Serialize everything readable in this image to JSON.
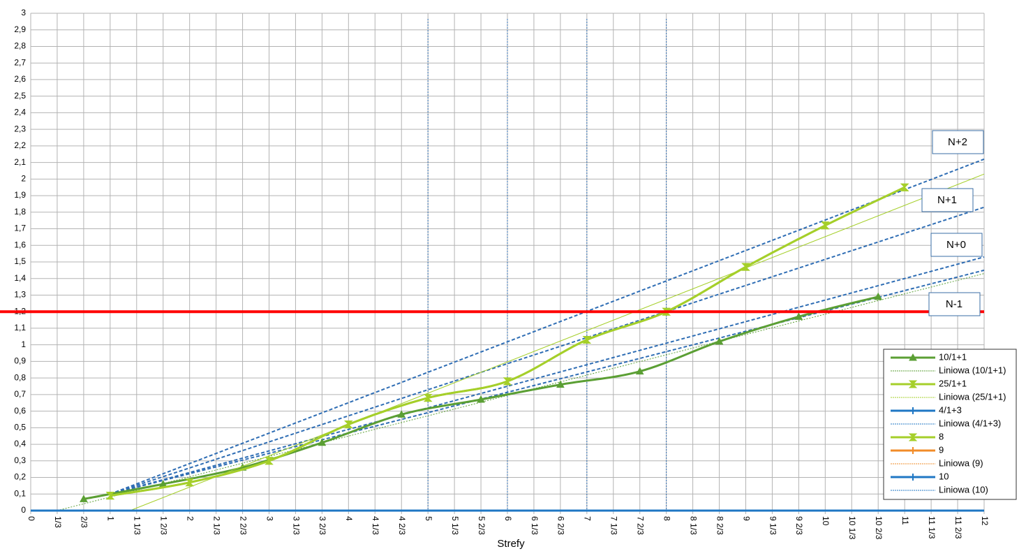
{
  "chart_data": {
    "type": "line",
    "x_label": "Strefy",
    "xlim": [
      0,
      12
    ],
    "ylim": [
      0,
      3
    ],
    "grid": true,
    "xticks": [
      0,
      {
        "value": 0.3333,
        "label": "1/3"
      },
      {
        "value": 0.6667,
        "label": "2/3"
      },
      1,
      {
        "value": 1.3333,
        "label": "1 1/3"
      },
      {
        "value": 1.6667,
        "label": "1 2/3"
      },
      2,
      {
        "value": 2.3333,
        "label": "2 1/3"
      },
      {
        "value": 2.6667,
        "label": "2 2/3"
      },
      3,
      {
        "value": 3.3333,
        "label": "3 1/3"
      },
      {
        "value": 3.6667,
        "label": "3 2/3"
      },
      4,
      {
        "value": 4.3333,
        "label": "4 1/3"
      },
      {
        "value": 4.6667,
        "label": "4 2/3"
      },
      5,
      {
        "value": 5.3333,
        "label": "5 1/3"
      },
      {
        "value": 5.6667,
        "label": "5 2/3"
      },
      6,
      {
        "value": 6.3333,
        "label": "6 1/3"
      },
      {
        "value": 6.6667,
        "label": "6 2/3"
      },
      7,
      {
        "value": 7.3333,
        "label": "7 1/3"
      },
      {
        "value": 7.6667,
        "label": "7 2/3"
      },
      8,
      {
        "value": 8.3333,
        "label": "8 1/3"
      },
      {
        "value": 8.6667,
        "label": "8 2/3"
      },
      9,
      {
        "value": 9.3333,
        "label": "9 1/3"
      },
      {
        "value": 9.6667,
        "label": "9 2/3"
      },
      10,
      {
        "value": 10.3333,
        "label": "10 1/3"
      },
      {
        "value": 10.6667,
        "label": "10 2/3"
      },
      11,
      {
        "value": 11.3333,
        "label": "11 1/3"
      },
      {
        "value": 11.6667,
        "label": "11 2/3"
      },
      12
    ],
    "yticks": [
      0,
      {
        "value": 0.1,
        "label": "0,1"
      },
      {
        "value": 0.2,
        "label": "0,2"
      },
      {
        "value": 0.3,
        "label": "0,3"
      },
      {
        "value": 0.4,
        "label": "0,4"
      },
      {
        "value": 0.5,
        "label": "0,5"
      },
      {
        "value": 0.6,
        "label": "0,6"
      },
      {
        "value": 0.7,
        "label": "0,7"
      },
      {
        "value": 0.8,
        "label": "0,8"
      },
      {
        "value": 0.9,
        "label": "0,9"
      },
      1,
      {
        "value": 1.1,
        "label": "1,1"
      },
      {
        "value": 1.2,
        "label": "1,2"
      },
      {
        "value": 1.3,
        "label": "1,3"
      },
      {
        "value": 1.4,
        "label": "1,4"
      },
      {
        "value": 1.5,
        "label": "1,5"
      },
      {
        "value": 1.6,
        "label": "1,6"
      },
      {
        "value": 1.7,
        "label": "1,7"
      },
      {
        "value": 1.8,
        "label": "1,8"
      },
      {
        "value": 1.9,
        "label": "1,9"
      },
      2,
      {
        "value": 2.1,
        "label": "2,1"
      },
      {
        "value": 2.2,
        "label": "2,2"
      },
      {
        "value": 2.3,
        "label": "2,3"
      },
      {
        "value": 2.4,
        "label": "2,4"
      },
      {
        "value": 2.5,
        "label": "2,5"
      },
      {
        "value": 2.6,
        "label": "2,6"
      },
      {
        "value": 2.7,
        "label": "2,7"
      },
      {
        "value": 2.8,
        "label": "2,8"
      },
      {
        "value": 2.9,
        "label": "2,9"
      },
      3
    ],
    "series": [
      {
        "name": "10/1+1",
        "kind": "data",
        "marker": "triangle",
        "color": "#5b9f34",
        "x": [
          0.6667,
          1.6667,
          2.6667,
          3.6667,
          4.6667,
          5.6667,
          6.6667,
          7.6667,
          8.6667,
          9.6667,
          10.6667
        ],
        "values": [
          0.07,
          0.16,
          0.26,
          0.41,
          0.58,
          0.67,
          0.76,
          0.84,
          1.02,
          1.17,
          1.29
        ]
      },
      {
        "name": "Liniowa (10/1+1)",
        "kind": "trend",
        "color": "#5b9f34",
        "x": [
          0.3333,
          12
        ],
        "values": [
          0,
          1.43
        ]
      },
      {
        "name": "25/1+1",
        "kind": "data",
        "marker": "hourglass",
        "color": "#a5cf2a",
        "x": [
          1,
          2,
          3,
          4,
          5,
          6,
          7,
          8,
          9,
          10,
          11
        ],
        "values": [
          0.09,
          0.17,
          0.3,
          0.52,
          0.68,
          0.78,
          1.03,
          1.2,
          1.47,
          1.72,
          1.95
        ]
      },
      {
        "name": "Liniowa (25/1+1)",
        "kind": "trend",
        "color": "#a5cf2a",
        "x": [
          1.25,
          12
        ],
        "values": [
          0,
          2.03
        ]
      },
      {
        "name": "4/1+3",
        "kind": "data",
        "marker": "plus",
        "color": "#1f77c4",
        "x": [],
        "values": []
      },
      {
        "name": "Liniowa (4/1+3)",
        "kind": "trend",
        "color": "#1f77c4",
        "x": [],
        "values": []
      },
      {
        "name": "8",
        "kind": "data",
        "marker": "hourglass",
        "color": "#a5cf2a",
        "x": [
          1,
          2,
          3,
          4,
          5,
          6,
          7,
          8,
          9,
          10,
          11
        ],
        "values": [
          0.09,
          0.17,
          0.3,
          0.52,
          0.68,
          0.78,
          1.03,
          1.2,
          1.47,
          1.72,
          1.95
        ]
      },
      {
        "name": "9",
        "kind": "data",
        "marker": "plus",
        "color": "#f28c28",
        "x": [],
        "values": []
      },
      {
        "name": "Liniowa (9)",
        "kind": "trend",
        "color": "#f28c28",
        "x": [],
        "values": []
      },
      {
        "name": "10",
        "kind": "data",
        "marker": "plus",
        "color": "#1f77c4",
        "x": [
          0,
          12
        ],
        "values": [
          0,
          0
        ]
      },
      {
        "name": "Liniowa (10)",
        "kind": "trend",
        "color": "#1f77c4",
        "x": [],
        "values": []
      }
    ],
    "reference_lines": [
      {
        "label": "N+2",
        "color": "#2e6db4",
        "x": [
          1,
          12
        ],
        "values": [
          0.1,
          2.12
        ]
      },
      {
        "label": "N+1",
        "color": "#2e6db4",
        "x": [
          1,
          12
        ],
        "values": [
          0.1,
          1.83
        ]
      },
      {
        "label": "N+0",
        "color": "#2e6db4",
        "x": [
          1,
          12
        ],
        "values": [
          0.1,
          1.53
        ]
      },
      {
        "label": "N-1",
        "color": "#2e6db4",
        "x": [
          1,
          12
        ],
        "values": [
          0.1,
          1.45
        ]
      }
    ],
    "vlines": {
      "color": "#2e6db4",
      "values": [
        5,
        6,
        7,
        8
      ]
    },
    "hline": {
      "color": "#ff0000",
      "value": 1.2
    }
  }
}
